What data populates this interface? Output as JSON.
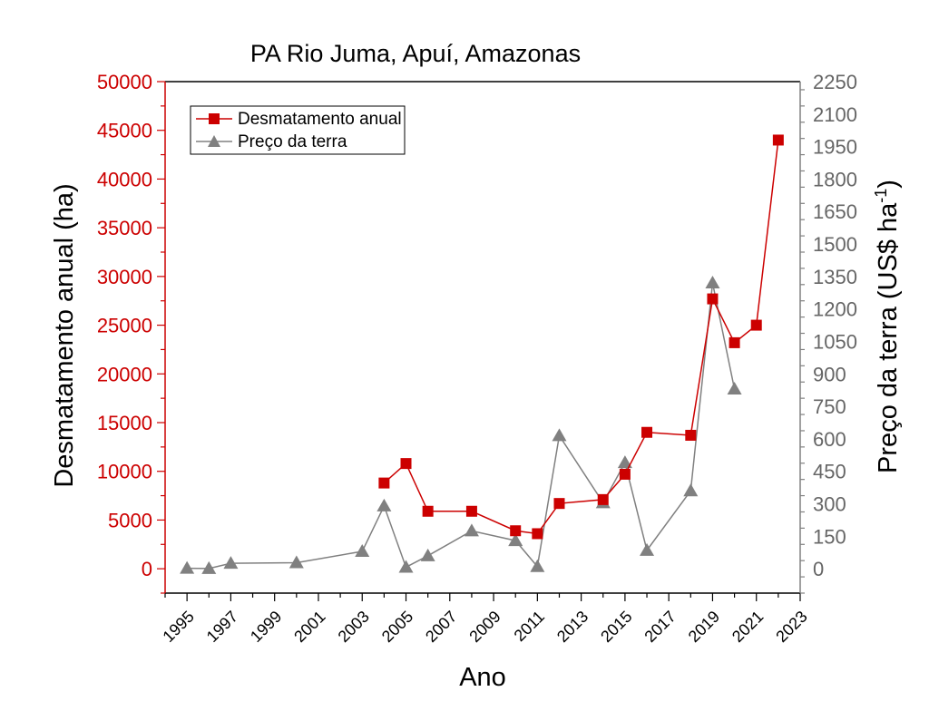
{
  "chart_data": {
    "type": "line",
    "title": "PA Rio Juma, Apuí, Amazonas",
    "xlabel": "Ano",
    "ylabel_left": "Desmatamento anual (ha)",
    "ylabel_right_main": "Preço da terra (US$ ha",
    "ylabel_right_sup": "-1",
    "ylabel_right_close": ")",
    "xlim": [
      1994,
      2023
    ],
    "x_ticks": [
      1995,
      1997,
      1999,
      2001,
      2003,
      2005,
      2007,
      2009,
      2011,
      2013,
      2015,
      2017,
      2019,
      2021,
      2023
    ],
    "x_tick_labels": [
      "1995",
      "1997",
      "1999",
      "2001",
      "2003",
      "2005",
      "2007",
      "2009",
      "2011",
      "2013",
      "2015",
      "2017",
      "2019",
      "2021",
      "2023"
    ],
    "ylim_left": [
      -2500,
      50000
    ],
    "y_ticks_left": [
      0,
      5000,
      10000,
      15000,
      20000,
      25000,
      30000,
      35000,
      40000,
      45000,
      50000
    ],
    "y_tick_labels_left": [
      "0",
      "5000",
      "10000",
      "15000",
      "20000",
      "25000",
      "30000",
      "35000",
      "40000",
      "45000",
      "50000"
    ],
    "ylim_right": [
      -112.5,
      2250
    ],
    "y_ticks_right": [
      0,
      150,
      300,
      450,
      600,
      750,
      900,
      1050,
      1200,
      1350,
      1500,
      1650,
      1800,
      1950,
      2100,
      2250
    ],
    "y_tick_labels_right": [
      "0",
      "150",
      "300",
      "450",
      "600",
      "750",
      "900",
      "1050",
      "1200",
      "1350",
      "1500",
      "1650",
      "1800",
      "1950",
      "2100",
      "2250"
    ],
    "legend_position": "top-left",
    "series": [
      {
        "name": "Desmatamento anual",
        "axis": "left",
        "color": "#cc0000",
        "marker": "square",
        "x": [
          2004,
          2005,
          2006,
          2008,
          2010,
          2011,
          2012,
          2014,
          2015,
          2016,
          2018,
          2019,
          2020,
          2021,
          2022
        ],
        "y": [
          8800,
          10800,
          5900,
          5900,
          3900,
          3600,
          6700,
          7100,
          9700,
          14000,
          13700,
          27700,
          23200,
          25000,
          44000
        ]
      },
      {
        "name": "Preço da terra",
        "axis": "right",
        "color": "#808080",
        "marker": "triangle",
        "x": [
          1995,
          1996,
          1997,
          2000,
          2003,
          2004,
          2005,
          2006,
          2008,
          2010,
          2011,
          2012,
          2014,
          2015,
          2016,
          2018,
          2019,
          2020
        ],
        "y": [
          2,
          1,
          25,
          28,
          80,
          290,
          7,
          60,
          175,
          130,
          10,
          615,
          305,
          490,
          85,
          360,
          1320,
          830
        ]
      }
    ]
  }
}
